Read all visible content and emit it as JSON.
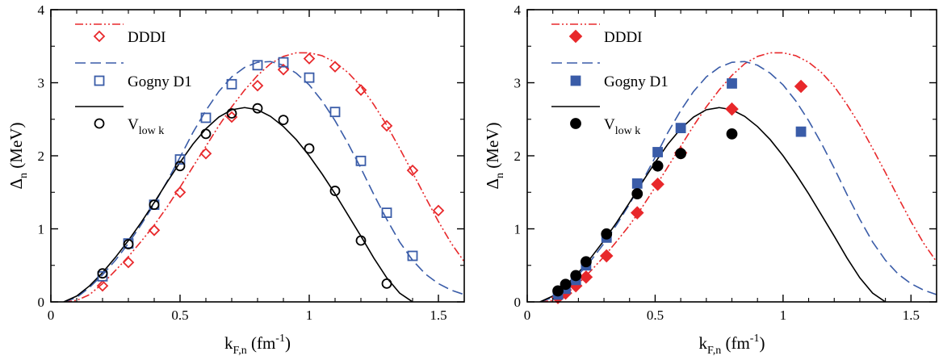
{
  "chart_data": [
    {
      "type": "line",
      "panel": "left",
      "xlabel_main": "k",
      "xlabel_sub": "F,n",
      "xlabel_unit_base": " (fm",
      "xlabel_unit_exp": "-1",
      "xlabel_unit_end": ")",
      "ylabel_main": "Δ",
      "ylabel_sub": "n",
      "ylabel_unit": " (MeV)",
      "xlim": [
        0,
        1.6
      ],
      "ylim": [
        0,
        4
      ],
      "xticks": [
        0,
        0.5,
        1,
        1.5
      ],
      "xtick_labels": [
        "0",
        "0.5",
        "1",
        "1.5"
      ],
      "yticks": [
        0,
        1,
        2,
        3,
        4
      ],
      "ytick_labels": [
        "0",
        "1",
        "2",
        "3",
        "4"
      ],
      "grid": false,
      "legend_position": "top-left",
      "series": [
        {
          "name": "DDDI",
          "color": "#e8282b",
          "curve_style": "dash-dot-dot",
          "marker": "diamond-open",
          "curve": {
            "x": [
              0.05,
              0.1,
              0.15,
              0.2,
              0.25,
              0.3,
              0.35,
              0.4,
              0.45,
              0.5,
              0.55,
              0.6,
              0.65,
              0.7,
              0.75,
              0.8,
              0.85,
              0.9,
              0.95,
              1.0,
              1.05,
              1.1,
              1.15,
              1.2,
              1.25,
              1.3,
              1.35,
              1.4,
              1.45,
              1.5,
              1.55,
              1.6
            ],
            "y": [
              0.0,
              0.02,
              0.1,
              0.25,
              0.43,
              0.62,
              0.83,
              1.05,
              1.3,
              1.57,
              1.85,
              2.13,
              2.41,
              2.67,
              2.9,
              3.1,
              3.26,
              3.36,
              3.41,
              3.41,
              3.37,
              3.28,
              3.14,
              2.95,
              2.7,
              2.42,
              2.1,
              1.77,
              1.43,
              1.1,
              0.8,
              0.55
            ]
          },
          "points": {
            "x": [
              0.2,
              0.3,
              0.4,
              0.5,
              0.6,
              0.7,
              0.8,
              0.9,
              1.0,
              1.1,
              1.2,
              1.3,
              1.4,
              1.5
            ],
            "y": [
              0.22,
              0.54,
              0.98,
              1.5,
              2.03,
              2.53,
              2.96,
              3.18,
              3.33,
              3.22,
              2.9,
              2.41,
              1.8,
              1.25
            ]
          }
        },
        {
          "name": "Gogny D1",
          "color": "#3a5ca8",
          "curve_style": "dashed",
          "marker": "square-open",
          "curve": {
            "x": [
              0.05,
              0.1,
              0.15,
              0.2,
              0.25,
              0.3,
              0.35,
              0.4,
              0.45,
              0.5,
              0.55,
              0.6,
              0.65,
              0.7,
              0.75,
              0.8,
              0.85,
              0.9,
              0.95,
              1.0,
              1.05,
              1.1,
              1.15,
              1.2,
              1.25,
              1.3,
              1.35,
              1.4,
              1.45,
              1.5,
              1.55,
              1.6
            ],
            "y": [
              0.0,
              0.06,
              0.2,
              0.37,
              0.57,
              0.8,
              1.06,
              1.34,
              1.65,
              1.98,
              2.32,
              2.62,
              2.88,
              3.08,
              3.21,
              3.28,
              3.29,
              3.24,
              3.13,
              2.97,
              2.75,
              2.48,
              2.17,
              1.83,
              1.47,
              1.13,
              0.82,
              0.57,
              0.38,
              0.25,
              0.16,
              0.1
            ]
          },
          "points": {
            "x": [
              0.2,
              0.3,
              0.4,
              0.5,
              0.6,
              0.7,
              0.8,
              0.9,
              1.0,
              1.1,
              1.2,
              1.3,
              1.4
            ],
            "y": [
              0.35,
              0.8,
              1.33,
              1.95,
              2.52,
              2.98,
              3.24,
              3.28,
              3.07,
              2.6,
              1.93,
              1.22,
              0.63
            ]
          }
        },
        {
          "name": "V",
          "name_sub": "low k",
          "color": "#000000",
          "curve_style": "solid",
          "marker": "circle-open",
          "curve": {
            "x": [
              0.05,
              0.1,
              0.15,
              0.2,
              0.25,
              0.3,
              0.35,
              0.4,
              0.45,
              0.5,
              0.55,
              0.6,
              0.65,
              0.7,
              0.75,
              0.8,
              0.85,
              0.9,
              0.95,
              1.0,
              1.05,
              1.1,
              1.15,
              1.2,
              1.25,
              1.3,
              1.35,
              1.4
            ],
            "y": [
              0.0,
              0.08,
              0.22,
              0.4,
              0.61,
              0.84,
              1.09,
              1.36,
              1.64,
              1.91,
              2.16,
              2.37,
              2.53,
              2.63,
              2.66,
              2.63,
              2.54,
              2.4,
              2.22,
              2.0,
              1.75,
              1.48,
              1.19,
              0.9,
              0.6,
              0.33,
              0.12,
              0.0
            ]
          },
          "points": {
            "x": [
              0.2,
              0.3,
              0.4,
              0.5,
              0.6,
              0.7,
              0.8,
              0.9,
              1.0,
              1.1,
              1.2,
              1.3
            ],
            "y": [
              0.39,
              0.79,
              1.33,
              1.86,
              2.3,
              2.58,
              2.65,
              2.49,
              2.1,
              1.52,
              0.84,
              0.25
            ]
          }
        }
      ]
    },
    {
      "type": "line",
      "panel": "right",
      "xlabel_main": "k",
      "xlabel_sub": "F,n",
      "xlabel_unit_base": " (fm",
      "xlabel_unit_exp": "-1",
      "xlabel_unit_end": ")",
      "ylabel_main": "Δ",
      "ylabel_sub": "n",
      "ylabel_unit": " (MeV)",
      "xlim": [
        0,
        1.6
      ],
      "ylim": [
        0,
        4
      ],
      "xticks": [
        0,
        0.5,
        1,
        1.5
      ],
      "xtick_labels": [
        "0",
        "0.5",
        "1",
        "1.5"
      ],
      "yticks": [
        0,
        1,
        2,
        3,
        4
      ],
      "ytick_labels": [
        "0",
        "1",
        "2",
        "3",
        "4"
      ],
      "grid": false,
      "legend_position": "top-left",
      "series": [
        {
          "name": "DDDI",
          "color": "#e8282b",
          "curve_style": "dash-dot-dot",
          "marker": "diamond-filled",
          "curve": {
            "x": [
              0.05,
              0.1,
              0.15,
              0.2,
              0.25,
              0.3,
              0.35,
              0.4,
              0.45,
              0.5,
              0.55,
              0.6,
              0.65,
              0.7,
              0.75,
              0.8,
              0.85,
              0.9,
              0.95,
              1.0,
              1.05,
              1.1,
              1.15,
              1.2,
              1.25,
              1.3,
              1.35,
              1.4,
              1.45,
              1.5,
              1.55,
              1.6
            ],
            "y": [
              0.0,
              0.02,
              0.1,
              0.25,
              0.43,
              0.62,
              0.83,
              1.05,
              1.3,
              1.57,
              1.85,
              2.13,
              2.41,
              2.67,
              2.9,
              3.1,
              3.26,
              3.36,
              3.41,
              3.41,
              3.37,
              3.28,
              3.14,
              2.95,
              2.7,
              2.42,
              2.1,
              1.77,
              1.43,
              1.1,
              0.8,
              0.55
            ]
          },
          "points": {
            "x": [
              0.12,
              0.15,
              0.19,
              0.23,
              0.31,
              0.43,
              0.51,
              0.6,
              0.8,
              1.07
            ],
            "y": [
              0.06,
              0.12,
              0.22,
              0.34,
              0.63,
              1.22,
              1.61,
              2.04,
              2.64,
              2.95
            ]
          }
        },
        {
          "name": "Gogny D1",
          "color": "#3a5ca8",
          "curve_style": "dashed",
          "marker": "square-filled",
          "curve": {
            "x": [
              0.05,
              0.1,
              0.15,
              0.2,
              0.25,
              0.3,
              0.35,
              0.4,
              0.45,
              0.5,
              0.55,
              0.6,
              0.65,
              0.7,
              0.75,
              0.8,
              0.85,
              0.9,
              0.95,
              1.0,
              1.05,
              1.1,
              1.15,
              1.2,
              1.25,
              1.3,
              1.35,
              1.4,
              1.45,
              1.5,
              1.55,
              1.6
            ],
            "y": [
              0.0,
              0.06,
              0.2,
              0.37,
              0.57,
              0.8,
              1.06,
              1.34,
              1.65,
              1.98,
              2.32,
              2.62,
              2.88,
              3.08,
              3.21,
              3.28,
              3.29,
              3.24,
              3.13,
              2.97,
              2.75,
              2.48,
              2.17,
              1.83,
              1.47,
              1.13,
              0.82,
              0.57,
              0.38,
              0.25,
              0.16,
              0.1
            ]
          },
          "points": {
            "x": [
              0.12,
              0.15,
              0.19,
              0.23,
              0.31,
              0.43,
              0.51,
              0.6,
              0.8,
              1.07
            ],
            "y": [
              0.1,
              0.18,
              0.3,
              0.5,
              0.88,
              1.62,
              2.05,
              2.38,
              2.99,
              2.33
            ]
          }
        },
        {
          "name": "V",
          "name_sub": "low k",
          "color": "#000000",
          "curve_style": "solid",
          "marker": "circle-filled",
          "curve": {
            "x": [
              0.05,
              0.1,
              0.15,
              0.2,
              0.25,
              0.3,
              0.35,
              0.4,
              0.45,
              0.5,
              0.55,
              0.6,
              0.65,
              0.7,
              0.75,
              0.8,
              0.85,
              0.9,
              0.95,
              1.0,
              1.05,
              1.1,
              1.15,
              1.2,
              1.25,
              1.3,
              1.35,
              1.4
            ],
            "y": [
              0.0,
              0.08,
              0.22,
              0.4,
              0.61,
              0.84,
              1.09,
              1.36,
              1.64,
              1.91,
              2.16,
              2.37,
              2.53,
              2.63,
              2.66,
              2.63,
              2.54,
              2.4,
              2.22,
              2.0,
              1.75,
              1.48,
              1.19,
              0.9,
              0.6,
              0.33,
              0.12,
              0.0
            ]
          },
          "points": {
            "x": [
              0.12,
              0.15,
              0.19,
              0.23,
              0.31,
              0.43,
              0.51,
              0.6,
              0.8
            ],
            "y": [
              0.15,
              0.24,
              0.36,
              0.55,
              0.93,
              1.48,
              1.86,
              2.03,
              2.3
            ]
          }
        }
      ]
    }
  ]
}
